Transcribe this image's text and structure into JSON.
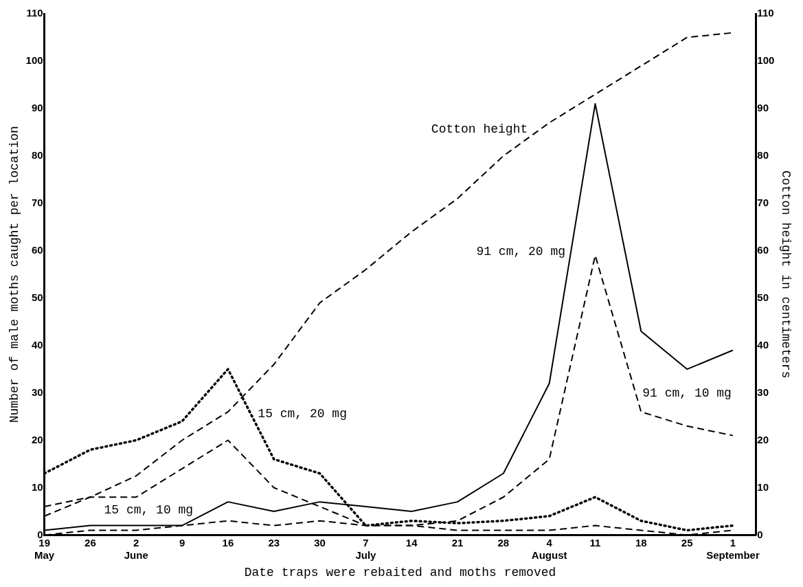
{
  "chart_data": {
    "type": "line",
    "xlabel": "Date traps were rebaited and moths removed",
    "ylabel": "Number of male moths caught per location",
    "y2label": "Cotton height in centimeters",
    "categories": [
      "19\nMay",
      "26",
      "2\nJune",
      "9",
      "16",
      "23",
      "30",
      "7\nJuly",
      "14",
      "21",
      "28",
      "4\nAugust",
      "11",
      "18",
      "25",
      "1\nSeptember"
    ],
    "series": [
      {
        "name": "Cotton height",
        "color": "#000000",
        "axis": "y2",
        "line_style": "dashed",
        "values": [
          4,
          8,
          12.5,
          20,
          26,
          36,
          49,
          56,
          64,
          71,
          80,
          87,
          93,
          99,
          105,
          106
        ]
      },
      {
        "name": "91 cm, 20 mg",
        "color": "#000000",
        "line_style": "solid",
        "values": [
          1,
          2,
          2,
          2,
          7,
          5,
          7,
          6,
          5,
          7,
          13,
          32,
          91,
          43,
          35,
          39
        ]
      },
      {
        "name": "91 cm, 10 mg",
        "color": "#000000",
        "line_style": "dashed",
        "values": [
          0,
          1,
          1,
          2,
          3,
          2,
          3,
          2,
          2,
          3,
          8,
          16,
          59,
          26,
          23,
          21
        ]
      },
      {
        "name": "15 cm, 20 mg",
        "color": "#000000",
        "line_style": "dotted",
        "values": [
          13,
          18,
          20,
          24,
          35,
          16,
          13,
          2,
          3,
          2.5,
          3,
          4,
          8,
          3,
          1,
          2
        ]
      },
      {
        "name": "15 cm, 10 mg",
        "color": "#000000",
        "line_style": "dashed",
        "values": [
          6,
          8,
          8,
          14,
          20,
          10,
          6,
          2,
          2,
          1,
          1,
          1,
          2,
          1,
          0,
          1
        ]
      }
    ],
    "ylim": [
      0,
      110
    ],
    "yticks": [
      0,
      10,
      20,
      30,
      40,
      50,
      60,
      70,
      80,
      90,
      100,
      110
    ],
    "y2lim": [
      0,
      110
    ],
    "y2ticks": [
      0,
      10,
      20,
      30,
      40,
      50,
      60,
      70,
      80,
      90,
      100,
      110
    ],
    "grid": false,
    "legend": false,
    "marker": "none"
  }
}
